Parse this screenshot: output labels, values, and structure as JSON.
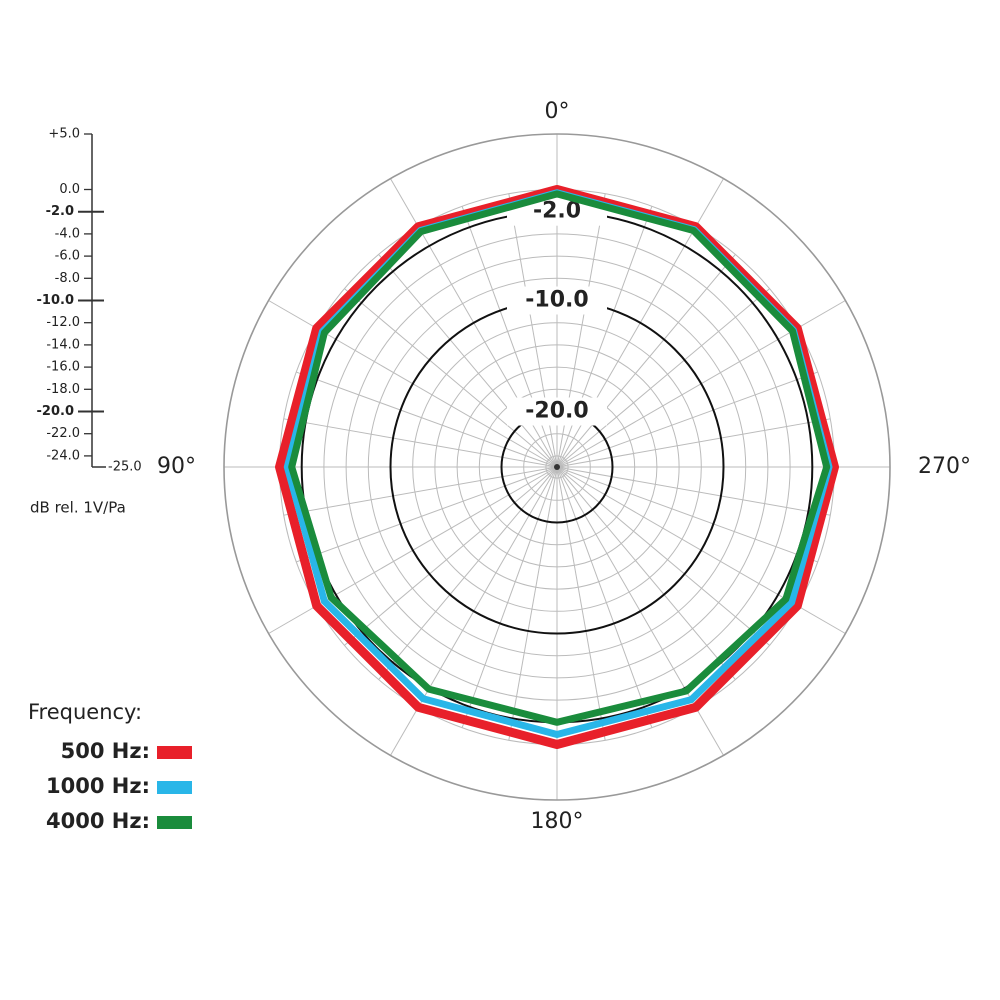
{
  "chart_data": {
    "type": "polar",
    "rlim": [
      -25,
      5
    ],
    "rticks": [
      {
        "value": 5,
        "label": "+5.0"
      },
      {
        "value": 0,
        "label": "0.0"
      },
      {
        "value": -2,
        "label": "-2.0"
      },
      {
        "value": -4,
        "label": "-4.0"
      },
      {
        "value": -6,
        "label": "-6.0"
      },
      {
        "value": -8,
        "label": "-8.0"
      },
      {
        "value": -10,
        "label": "-10.0"
      },
      {
        "value": -12,
        "label": "-12.0"
      },
      {
        "value": -14,
        "label": "-14.0"
      },
      {
        "value": -16,
        "label": "-16.0"
      },
      {
        "value": -18,
        "label": "-18.0"
      },
      {
        "value": -20,
        "label": "-20.0"
      },
      {
        "value": -22,
        "label": "-22.0"
      },
      {
        "value": -24,
        "label": "-24.0"
      },
      {
        "value": -25,
        "label": "-25.0"
      }
    ],
    "highlight_rings": [
      {
        "value": -2,
        "label": "-2.0"
      },
      {
        "value": -10,
        "label": "-10.0"
      },
      {
        "value": -20,
        "label": "-20.0"
      }
    ],
    "theta_ticks": [
      {
        "value": 0,
        "label": "0°"
      },
      {
        "value": 90,
        "label": "90°"
      },
      {
        "value": 180,
        "label": "180°"
      },
      {
        "value": 270,
        "label": "270°"
      }
    ],
    "axis_label": "dB rel. 1V/Pa",
    "legend_title": "Frequency:",
    "theta": [
      0,
      30,
      60,
      90,
      120,
      150,
      180,
      210,
      240,
      270,
      300,
      330
    ],
    "series": [
      {
        "name": "500 Hz:",
        "color": "#e8202a",
        "values": [
          0,
          0,
          0,
          0,
          0,
          0,
          0,
          0,
          0,
          0,
          0,
          0
        ]
      },
      {
        "name": "1000 Hz:",
        "color": "#29b6e8",
        "values": [
          -0.3,
          -0.4,
          -0.6,
          -0.7,
          -0.8,
          -0.9,
          -0.9,
          -0.8,
          -0.6,
          -0.5,
          -0.4,
          -0.3
        ]
      },
      {
        "name": "4000 Hz:",
        "color": "#1a8c3c",
        "values": [
          -0.4,
          -0.5,
          -0.8,
          -1.1,
          -1.5,
          -1.9,
          -2.0,
          -1.7,
          -1.2,
          -0.7,
          -0.5,
          -0.4
        ]
      }
    ]
  }
}
